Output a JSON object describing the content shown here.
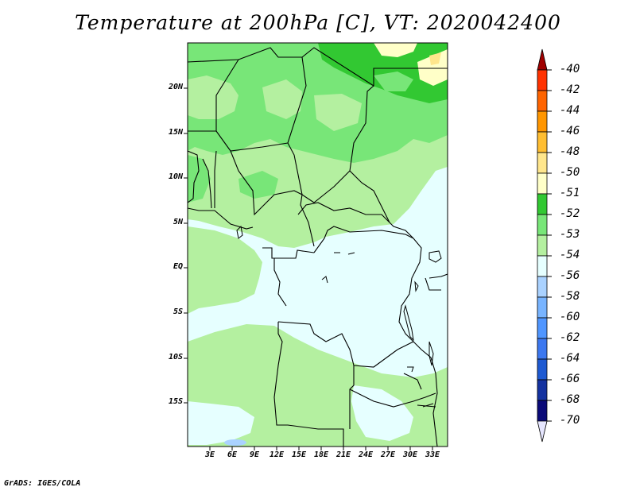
{
  "title": "Temperature at 200hPa [C], VT: 2020042400",
  "credit": "GrADS: IGES/COLA",
  "map": {
    "lon_range": [
      0,
      35
    ],
    "lat_range": [
      -20,
      25
    ],
    "y_ticks": [
      "20N",
      "15N",
      "10N",
      "5N",
      "EQ",
      "5S",
      "10S",
      "15S"
    ],
    "x_ticks": [
      "3E",
      "6E",
      "9E",
      "12E",
      "15E",
      "18E",
      "21E",
      "24E",
      "27E",
      "30E",
      "33E"
    ]
  },
  "colorbar": {
    "labels": [
      "-40",
      "-42",
      "-44",
      "-46",
      "-48",
      "-50",
      "-51",
      "-52",
      "-53",
      "-54",
      "-56",
      "-58",
      "-60",
      "-62",
      "-64",
      "-66",
      "-68",
      "-70"
    ],
    "colors": [
      "#a00000",
      "#ff3200",
      "#ff6400",
      "#ff9600",
      "#ffbe32",
      "#ffe68c",
      "#ffffc8",
      "#32c832",
      "#78e678",
      "#b4f0a0",
      "#e6ffff",
      "#aad2ff",
      "#78b4ff",
      "#5096ff",
      "#3c78f0",
      "#1e5ad2",
      "#1432a0",
      "#0a0a78",
      "#e6e6ff"
    ]
  }
}
